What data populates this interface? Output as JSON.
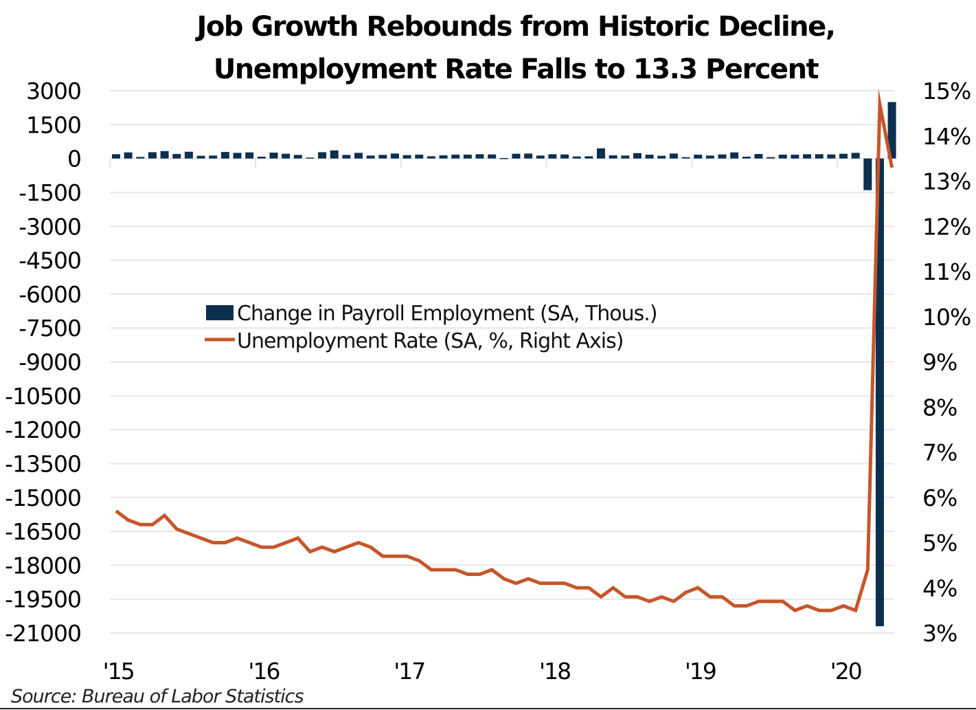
{
  "chart_data": {
    "type": "bar+line",
    "title_lines": [
      "Job Growth Rebounds from Historic Decline,",
      "Unemployment Rate Falls to 13.3 Percent"
    ],
    "source": "Source: Bureau of Labor Statistics",
    "colors": {
      "bars": "#0b3050",
      "line": "#c6562a",
      "grid": "#e6e6e6"
    },
    "left_axis": {
      "label": "Change in Payroll Employment (SA, Thous.)",
      "range": [
        -21000,
        3000
      ],
      "ticks": [
        "3000",
        "1500",
        "0",
        "-1500",
        "-3000",
        "-4500",
        "-6000",
        "-7500",
        "-9000",
        "-10500",
        "-12000",
        "-13500",
        "-15000",
        "-16500",
        "-18000",
        "-19500",
        "-21000"
      ],
      "tick_values": [
        3000,
        1500,
        0,
        -1500,
        -3000,
        -4500,
        -6000,
        -7500,
        -9000,
        -10500,
        -12000,
        -13500,
        -15000,
        -16500,
        -18000,
        -19500,
        -21000
      ]
    },
    "right_axis": {
      "label": "Unemployment Rate (SA, %, Right Axis)",
      "range": [
        3,
        15
      ],
      "ticks": [
        "15%",
        "14%",
        "13%",
        "12%",
        "11%",
        "10%",
        "9%",
        "8%",
        "7%",
        "6%",
        "5%",
        "4%",
        "3%"
      ],
      "tick_values": [
        15,
        14,
        13,
        12,
        11,
        10,
        9,
        8,
        7,
        6,
        5,
        4,
        3
      ]
    },
    "x_axis": {
      "start": "2015-01",
      "end": "2020-05",
      "tick_labels": [
        "'15",
        "'16",
        "'17",
        "'18",
        "'19",
        "'20"
      ],
      "tick_month_index": [
        0,
        12,
        24,
        36,
        48,
        60
      ]
    },
    "legend": [
      {
        "name": "Change in Payroll Employment (SA, Thous.)",
        "kind": "bar"
      },
      {
        "name": "Unemployment Rate (SA, %, Right Axis)",
        "kind": "line"
      }
    ],
    "legend_position": "center-left",
    "grid": true,
    "series": [
      {
        "name": "Change in Payroll Employment (SA, Thous.)",
        "axis": "left",
        "type": "bar",
        "values": [
          190,
          270,
          70,
          280,
          330,
          200,
          300,
          120,
          130,
          290,
          250,
          270,
          80,
          260,
          210,
          160,
          40,
          280,
          360,
          160,
          250,
          130,
          160,
          220,
          150,
          170,
          100,
          140,
          170,
          170,
          190,
          180,
          20,
          210,
          220,
          130,
          190,
          180,
          90,
          100,
          450,
          140,
          130,
          240,
          170,
          120,
          220,
          60,
          170,
          130,
          180,
          270,
          80,
          200,
          60,
          170,
          170,
          190,
          190,
          180,
          210,
          250,
          -1400,
          -20700,
          2500
        ]
      },
      {
        "name": "Unemployment Rate (SA, %, Right Axis)",
        "axis": "right",
        "type": "line",
        "values": [
          5.7,
          5.5,
          5.4,
          5.4,
          5.6,
          5.3,
          5.2,
          5.1,
          5.0,
          5.0,
          5.1,
          5.0,
          4.9,
          4.9,
          5.0,
          5.1,
          4.8,
          4.9,
          4.8,
          4.9,
          5.0,
          4.9,
          4.7,
          4.7,
          4.7,
          4.6,
          4.4,
          4.4,
          4.4,
          4.3,
          4.3,
          4.4,
          4.2,
          4.1,
          4.2,
          4.1,
          4.1,
          4.1,
          4.0,
          4.0,
          3.8,
          4.0,
          3.8,
          3.8,
          3.7,
          3.8,
          3.7,
          3.9,
          4.0,
          3.8,
          3.8,
          3.6,
          3.6,
          3.7,
          3.7,
          3.7,
          3.5,
          3.6,
          3.5,
          3.5,
          3.6,
          3.5,
          4.4,
          14.7,
          13.3
        ]
      }
    ]
  }
}
